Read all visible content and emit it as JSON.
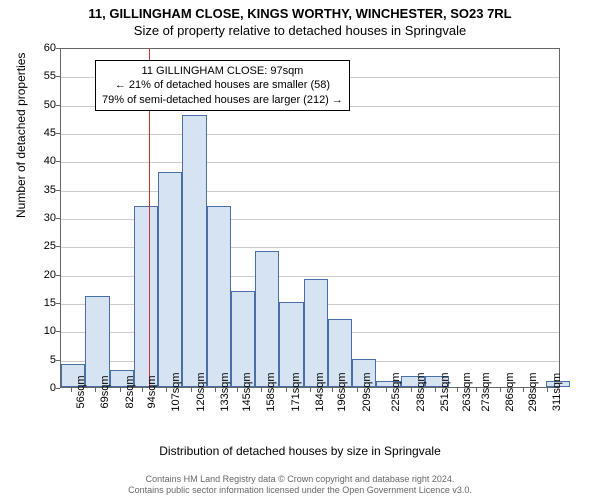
{
  "title": {
    "line1": "11, GILLINGHAM CLOSE, KINGS WORTHY, WINCHESTER, SO23 7RL",
    "line2": "Size of property relative to detached houses in Springvale"
  },
  "chart": {
    "type": "histogram",
    "background_color": "#ffffff",
    "grid_color": "#cccccc",
    "axis_color": "#666666",
    "bar_fill": "#d6e3f3",
    "bar_border": "#4a6fa5",
    "marker_color": "#cc3333",
    "ylim": [
      0,
      60
    ],
    "ytick_step": 5,
    "ylabel": "Number of detached properties",
    "xlabel": "Distribution of detached houses by size in Springvale",
    "x_start": 50,
    "x_end": 318,
    "bin_width_data": 13,
    "x_ticks": [
      56,
      69,
      82,
      94,
      107,
      120,
      133,
      145,
      158,
      171,
      184,
      196,
      209,
      225,
      238,
      251,
      263,
      273,
      286,
      298,
      311
    ],
    "x_tick_suffix": "sqm",
    "bars": [
      {
        "x": 50,
        "h": 4
      },
      {
        "x": 63,
        "h": 16
      },
      {
        "x": 76,
        "h": 3
      },
      {
        "x": 89,
        "h": 32
      },
      {
        "x": 102,
        "h": 38
      },
      {
        "x": 115,
        "h": 48
      },
      {
        "x": 128,
        "h": 32
      },
      {
        "x": 141,
        "h": 17
      },
      {
        "x": 154,
        "h": 24
      },
      {
        "x": 167,
        "h": 15
      },
      {
        "x": 180,
        "h": 19
      },
      {
        "x": 193,
        "h": 12
      },
      {
        "x": 206,
        "h": 5
      },
      {
        "x": 219,
        "h": 1
      },
      {
        "x": 232,
        "h": 2
      },
      {
        "x": 245,
        "h": 2
      },
      {
        "x": 258,
        "h": 0
      },
      {
        "x": 271,
        "h": 0
      },
      {
        "x": 284,
        "h": 0
      },
      {
        "x": 297,
        "h": 0
      },
      {
        "x": 310,
        "h": 1
      }
    ],
    "marker_x": 97
  },
  "annotation": {
    "line1": "11 GILLINGHAM CLOSE: 97sqm",
    "line2": "← 21% of detached houses are smaller (58)",
    "line3": "79% of semi-detached houses are larger (212) →"
  },
  "footer": {
    "line1": "Contains HM Land Registry data © Crown copyright and database right 2024.",
    "line2": "Contains public sector information licensed under the Open Government Licence v3.0."
  }
}
